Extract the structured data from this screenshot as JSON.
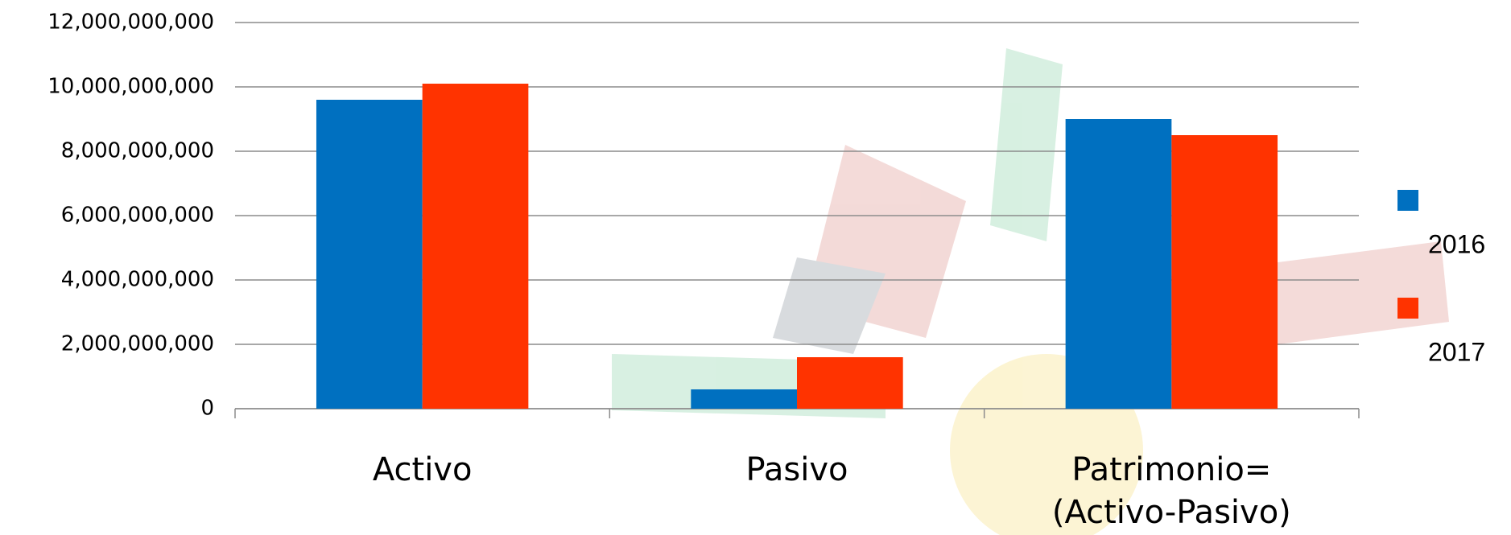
{
  "chart_data": {
    "type": "bar",
    "categories": [
      "Activo",
      "Pasivo",
      "Patrimonio= (Activo-Pasivo)"
    ],
    "series": [
      {
        "name": "2016",
        "color": "#0070c0",
        "values": [
          9600000000,
          600000000,
          9000000000
        ]
      },
      {
        "name": "2017",
        "color": "#ff3300",
        "values": [
          10100000000,
          1600000000,
          8500000000
        ]
      }
    ],
    "ylim": [
      0,
      12000000000
    ],
    "yticks": [
      0,
      {
        "value": 2000000000,
        "label": "2,000,000,000"
      },
      {
        "value": 4000000000,
        "label": "4,000,000,000"
      },
      {
        "value": 6000000000,
        "label": "6,000,000,000"
      },
      {
        "value": 8000000000,
        "label": "8,000,000,000"
      },
      {
        "value": 10000000000,
        "label": "10,000,000,000"
      },
      {
        "value": 12000000000,
        "label": "12,000,000,000"
      }
    ],
    "grid": true,
    "legend": "right"
  }
}
